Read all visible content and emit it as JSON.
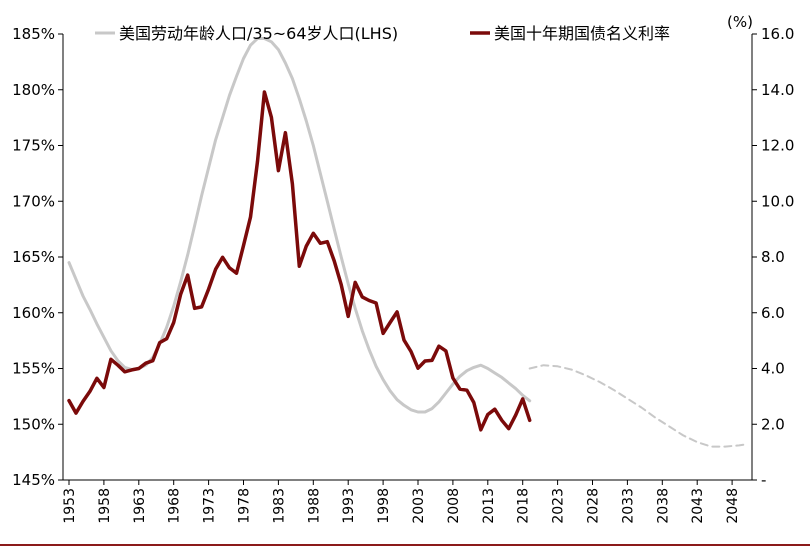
{
  "chart_data": {
    "type": "line",
    "title": "",
    "xlabel": "",
    "ylabel_left": "",
    "ylabel_right": "(%)",
    "ylim_left": [
      145,
      185
    ],
    "ylim_right": [
      0,
      16
    ],
    "xlim": [
      1953,
      2051
    ],
    "left_ticks": [
      "145%",
      "150%",
      "155%",
      "160%",
      "165%",
      "170%",
      "175%",
      "180%",
      "185%"
    ],
    "left_tick_values": [
      145,
      150,
      155,
      160,
      165,
      170,
      175,
      180,
      185
    ],
    "right_ticks": [
      "-",
      "2.0",
      "4.0",
      "6.0",
      "8.0",
      "10.0",
      "12.0",
      "14.0",
      "16.0"
    ],
    "right_tick_values": [
      0,
      2,
      4,
      6,
      8,
      10,
      12,
      14,
      16
    ],
    "x_ticks": [
      "1953",
      "1958",
      "1963",
      "1968",
      "1973",
      "1978",
      "1983",
      "1988",
      "1993",
      "1998",
      "2003",
      "2008",
      "2013",
      "2018",
      "2023",
      "2028",
      "2033",
      "2038",
      "2043",
      "2048"
    ],
    "x_tick_values": [
      1953,
      1958,
      1963,
      1968,
      1973,
      1978,
      1983,
      1988,
      1993,
      1998,
      2003,
      2008,
      2013,
      2018,
      2023,
      2028,
      2033,
      2038,
      2043,
      2048
    ],
    "grid": false,
    "legend_placement": "top",
    "series": [
      {
        "name": "美国劳动年龄人口/35~64岁人口(LHS)",
        "axis": "left",
        "color": "#c8c8c8",
        "style": "solid",
        "x": [
          1953,
          1954,
          1955,
          1956,
          1957,
          1958,
          1959,
          1960,
          1961,
          1962,
          1963,
          1964,
          1965,
          1966,
          1967,
          1968,
          1969,
          1970,
          1971,
          1972,
          1973,
          1974,
          1975,
          1976,
          1977,
          1978,
          1979,
          1980,
          1981,
          1982,
          1983,
          1984,
          1985,
          1986,
          1987,
          1988,
          1989,
          1990,
          1991,
          1992,
          1993,
          1994,
          1995,
          1996,
          1997,
          1998,
          1999,
          2000,
          2001,
          2002,
          2003,
          2004,
          2005,
          2006,
          2007,
          2008,
          2009,
          2010,
          2011,
          2012,
          2013,
          2014,
          2015,
          2016,
          2017,
          2018,
          2019
        ],
        "values": [
          164.5,
          163.0,
          161.5,
          160.3,
          159.0,
          157.8,
          156.6,
          155.7,
          155.1,
          154.9,
          155.0,
          155.3,
          156.0,
          157.2,
          158.7,
          160.6,
          162.8,
          165.2,
          167.8,
          170.5,
          173.0,
          175.5,
          177.5,
          179.5,
          181.2,
          182.8,
          184.0,
          184.6,
          184.6,
          184.3,
          183.6,
          182.4,
          181.0,
          179.2,
          177.2,
          175.0,
          172.5,
          170.0,
          167.5,
          165.0,
          162.6,
          160.4,
          158.4,
          156.7,
          155.2,
          154.0,
          153.0,
          152.2,
          151.7,
          151.3,
          151.1,
          151.1,
          151.4,
          152.0,
          152.8,
          153.6,
          154.3,
          154.8,
          155.1,
          155.3,
          155.0,
          154.6,
          154.2,
          153.7,
          153.2,
          152.6,
          152.1
        ]
      },
      {
        "name": "",
        "axis": "left",
        "color": "#c8c8c8",
        "style": "dashed",
        "x": [
          2019,
          2021,
          2023,
          2025,
          2027,
          2029,
          2031,
          2033,
          2035,
          2037,
          2039,
          2041,
          2043,
          2045,
          2047,
          2049,
          2050
        ],
        "values": [
          155.0,
          155.3,
          155.2,
          154.9,
          154.4,
          153.8,
          153.1,
          152.3,
          151.5,
          150.6,
          149.8,
          149.0,
          148.4,
          148.0,
          148.0,
          148.1,
          148.2
        ]
      },
      {
        "name": "美国十年期国债名义利率",
        "axis": "right",
        "color": "#7b0a0a",
        "style": "solid",
        "x": [
          1953,
          1954,
          1955,
          1956,
          1957,
          1958,
          1959,
          1960,
          1961,
          1962,
          1963,
          1964,
          1965,
          1966,
          1967,
          1968,
          1969,
          1970,
          1971,
          1972,
          1973,
          1974,
          1975,
          1976,
          1977,
          1978,
          1979,
          1980,
          1981,
          1982,
          1983,
          1984,
          1985,
          1986,
          1987,
          1988,
          1989,
          1990,
          1991,
          1992,
          1993,
          1994,
          1995,
          1996,
          1997,
          1998,
          1999,
          2000,
          2001,
          2002,
          2003,
          2004,
          2005,
          2006,
          2007,
          2008,
          2009,
          2010,
          2011,
          2012,
          2013,
          2014,
          2015,
          2016,
          2017,
          2018,
          2019
        ],
        "values": [
          2.85,
          2.4,
          2.82,
          3.18,
          3.65,
          3.32,
          4.33,
          4.12,
          3.88,
          3.95,
          4.0,
          4.19,
          4.28,
          4.93,
          5.07,
          5.65,
          6.67,
          7.35,
          6.16,
          6.21,
          6.85,
          7.56,
          7.99,
          7.61,
          7.42,
          8.41,
          9.43,
          11.43,
          13.92,
          13.01,
          11.1,
          12.46,
          10.62,
          7.67,
          8.39,
          8.85,
          8.49,
          8.55,
          7.86,
          7.01,
          5.87,
          7.09,
          6.57,
          6.44,
          6.35,
          5.26,
          5.65,
          6.03,
          5.02,
          4.61,
          4.01,
          4.27,
          4.29,
          4.8,
          4.63,
          3.66,
          3.26,
          3.22,
          2.78,
          1.8,
          2.35,
          2.54,
          2.14,
          1.84,
          2.33,
          2.91,
          2.14
        ]
      }
    ]
  }
}
